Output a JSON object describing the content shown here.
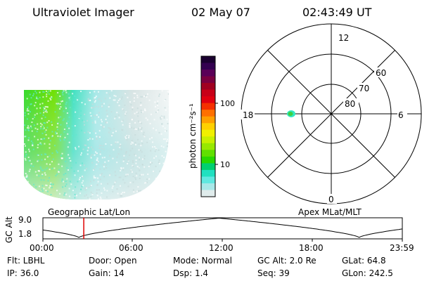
{
  "header": {
    "instrument": "Ultraviolet Imager",
    "date": "02 May 07",
    "time": "02:43:49 UT"
  },
  "colorbar": {
    "label": "photon cm⁻²s⁻¹",
    "ticks": [
      "100",
      "10"
    ],
    "colors": [
      "#1a0030",
      "#330050",
      "#5a0058",
      "#7a0040",
      "#a00020",
      "#c80018",
      "#e00010",
      "#f53000",
      "#ff7000",
      "#ffa000",
      "#ffd000",
      "#f0f000",
      "#c8f000",
      "#98e800",
      "#60e000",
      "#28d800",
      "#00d070",
      "#20e0c0",
      "#60e8e0",
      "#a8e8e8",
      "#e0ecec"
    ]
  },
  "polar": {
    "mlt_labels": [
      "12",
      "18",
      "6",
      "0"
    ],
    "lat_labels": [
      "60",
      "70",
      "80"
    ]
  },
  "timeline": {
    "ylabel": "GC Alt",
    "yticks": [
      "9.0",
      "1.8"
    ],
    "left_caption": "Geographic Lat/Lon",
    "right_caption": "Apex MLat/MLT",
    "xticks": [
      "00:00",
      "06:00",
      "12:00",
      "18:00",
      "23:59"
    ],
    "marker_time_fraction": 0.1137
  },
  "info": {
    "flt": "Flt: LBHL",
    "ip": "IP: 36.0",
    "door": "Door: Open",
    "gain": "Gain: 14",
    "mode": "Mode: Normal",
    "dsp": "Dsp:     1.4",
    "gcalt": "GC Alt: 2.0 Re",
    "seq": "Seq: 39",
    "glat": "GLat:  64.8",
    "glon": "GLon: 242.5"
  }
}
